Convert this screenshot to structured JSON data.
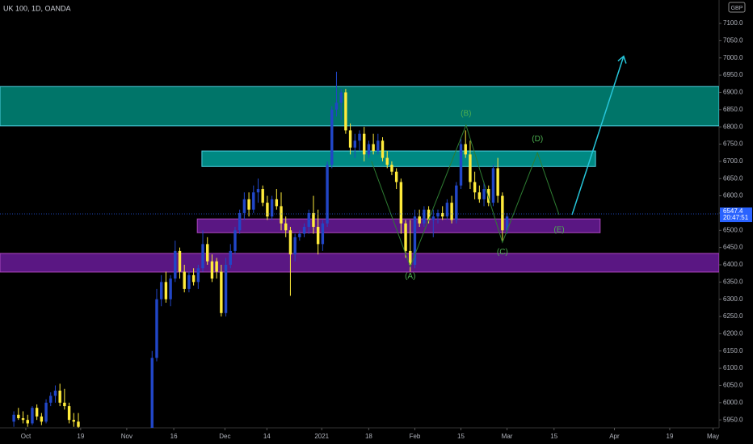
{
  "chart_data": {
    "type": "candlestick",
    "title": "UK 100, 1D, OANDA",
    "currency": "GBP",
    "up_color": "#2146c7",
    "down_color": "#ffeb3b",
    "xlim": [
      0,
      156
    ],
    "ylim": [
      5927,
      7168
    ],
    "xticks": [
      {
        "value": 5.6,
        "label": "Oct"
      },
      {
        "value": 17.5,
        "label": "19"
      },
      {
        "value": 27.5,
        "label": "Nov"
      },
      {
        "value": 37.7,
        "label": "16"
      },
      {
        "value": 48.8,
        "label": "Dec"
      },
      {
        "value": 57.9,
        "label": "14"
      },
      {
        "value": 69.8,
        "label": "2021"
      },
      {
        "value": 80,
        "label": "18"
      },
      {
        "value": 90,
        "label": "Feb"
      },
      {
        "value": 100,
        "label": "15"
      },
      {
        "value": 110,
        "label": "Mar"
      },
      {
        "value": 120.2,
        "label": "15"
      },
      {
        "value": 133.3,
        "label": "Apr"
      },
      {
        "value": 145.3,
        "label": "19"
      },
      {
        "value": 154.7,
        "label": "May"
      }
    ],
    "yticks": [
      {
        "value": 5950,
        "label": "5950.0"
      },
      {
        "value": 6000,
        "label": "6000.0"
      },
      {
        "value": 6050,
        "label": "6050.0"
      },
      {
        "value": 6100,
        "label": "6100.0"
      },
      {
        "value": 6150,
        "label": "6150.0"
      },
      {
        "value": 6200,
        "label": "6200.0"
      },
      {
        "value": 6250,
        "label": "6250.0"
      },
      {
        "value": 6300,
        "label": "6300.0"
      },
      {
        "value": 6350,
        "label": "6350.0"
      },
      {
        "value": 6400,
        "label": "6400.0"
      },
      {
        "value": 6450,
        "label": "6450.0"
      },
      {
        "value": 6500,
        "label": "6500.0"
      },
      {
        "value": 6550,
        "label": "6550.0"
      },
      {
        "value": 6600,
        "label": "6600.0"
      },
      {
        "value": 6650,
        "label": "6650.0"
      },
      {
        "value": 6700,
        "label": "6700.0"
      },
      {
        "value": 6750,
        "label": "6750.0"
      },
      {
        "value": 6800,
        "label": "6800.0"
      },
      {
        "value": 6850,
        "label": "6850.0"
      },
      {
        "value": 6900,
        "label": "6900.0"
      },
      {
        "value": 6950,
        "label": "6950.0"
      },
      {
        "value": 7000,
        "label": "7000.0"
      },
      {
        "value": 7050,
        "label": "7050.0"
      },
      {
        "value": 7100,
        "label": "7100.0"
      }
    ],
    "x": [
      3,
      4,
      5,
      6,
      7,
      8,
      9,
      10,
      11,
      12,
      13,
      14,
      15,
      16,
      17,
      33,
      34,
      35,
      36,
      37,
      38,
      39,
      40,
      41,
      42,
      43,
      44,
      45,
      46,
      47,
      48,
      49,
      50,
      51,
      52,
      53,
      54,
      55,
      56,
      57,
      58,
      59,
      60,
      61,
      62,
      63,
      64,
      65,
      66,
      67,
      68,
      69,
      70,
      71,
      72,
      73,
      74,
      75,
      76,
      77,
      78,
      79,
      80,
      81,
      82,
      83,
      84,
      85,
      86,
      87,
      88,
      89,
      90,
      91,
      92,
      93,
      94,
      95,
      96,
      97,
      98,
      99,
      100,
      101,
      102,
      103,
      104,
      105,
      106,
      107,
      108,
      109,
      110
    ],
    "open": [
      5945,
      5965,
      5955,
      5950,
      5940,
      5985,
      5960,
      5945,
      6000,
      6020,
      6035,
      6000,
      5990,
      5950,
      5945,
      5880,
      6130,
      6300,
      6350,
      6300,
      6360,
      6440,
      6380,
      6330,
      6370,
      6350,
      6390,
      6460,
      6410,
      6410,
      6380,
      6260,
      6400,
      6440,
      6500,
      6550,
      6590,
      6560,
      6610,
      6620,
      6580,
      6540,
      6590,
      6570,
      6520,
      6500,
      6430,
      6480,
      6490,
      6510,
      6550,
      6510,
      6460,
      6520,
      6690,
      6850,
      6870,
      6900,
      6790,
      6740,
      6760,
      6780,
      6720,
      6750,
      6730,
      6760,
      6710,
      6690,
      6670,
      6640,
      6520,
      6440,
      6400,
      6540,
      6520,
      6560,
      6530,
      6540,
      6550,
      6540,
      6580,
      6530,
      6630,
      6750,
      6720,
      6640,
      6610,
      6590,
      6620,
      6580,
      6680,
      6600,
      6500
    ],
    "high": [
      5975,
      5985,
      5975,
      5965,
      5990,
      5995,
      5970,
      6010,
      6030,
      6050,
      6055,
      6040,
      6000,
      5970,
      5970,
      6150,
      6330,
      6370,
      6380,
      6370,
      6470,
      6450,
      6400,
      6380,
      6390,
      6400,
      6500,
      6480,
      6430,
      6420,
      6400,
      6420,
      6460,
      6510,
      6560,
      6610,
      6610,
      6630,
      6650,
      6630,
      6600,
      6600,
      6620,
      6610,
      6540,
      6510,
      6490,
      6500,
      6520,
      6560,
      6600,
      6560,
      6530,
      6700,
      6860,
      6960,
      6910,
      6910,
      6810,
      6780,
      6790,
      6800,
      6760,
      6780,
      6780,
      6770,
      6730,
      6700,
      6680,
      6650,
      6530,
      6530,
      6560,
      6560,
      6570,
      6570,
      6560,
      6560,
      6570,
      6590,
      6600,
      6640,
      6770,
      6790,
      6760,
      6670,
      6630,
      6640,
      6630,
      6690,
      6710,
      6610,
      6550
    ],
    "low": [
      5930,
      5950,
      5940,
      5930,
      5935,
      5950,
      5935,
      5940,
      5990,
      6000,
      5990,
      5980,
      5940,
      5930,
      5920,
      5870,
      6120,
      6280,
      6290,
      6280,
      6350,
      6360,
      6320,
      6320,
      6340,
      6330,
      6380,
      6400,
      6350,
      6360,
      6250,
      6250,
      6390,
      6430,
      6490,
      6530,
      6540,
      6550,
      6580,
      6570,
      6530,
      6530,
      6560,
      6500,
      6480,
      6310,
      6410,
      6470,
      6480,
      6490,
      6490,
      6430,
      6440,
      6510,
      6680,
      6830,
      6820,
      6780,
      6720,
      6710,
      6730,
      6700,
      6710,
      6720,
      6720,
      6700,
      6680,
      6660,
      6620,
      6490,
      6420,
      6380,
      6390,
      6510,
      6510,
      6520,
      6480,
      6520,
      6530,
      6530,
      6520,
      6520,
      6620,
      6710,
      6620,
      6590,
      6580,
      6570,
      6570,
      6570,
      6580,
      6470,
      6490
    ],
    "close": [
      5965,
      5955,
      5950,
      5940,
      5985,
      5960,
      5945,
      6000,
      6020,
      6035,
      6000,
      5990,
      5950,
      5945,
      5930,
      6130,
      6300,
      6350,
      6300,
      6360,
      6440,
      6380,
      6330,
      6370,
      6350,
      6390,
      6460,
      6410,
      6360,
      6380,
      6260,
      6400,
      6440,
      6500,
      6550,
      6590,
      6560,
      6610,
      6620,
      6580,
      6540,
      6590,
      6570,
      6520,
      6500,
      6430,
      6480,
      6490,
      6510,
      6550,
      6510,
      6460,
      6520,
      6690,
      6850,
      6870,
      6900,
      6790,
      6740,
      6760,
      6780,
      6720,
      6750,
      6730,
      6760,
      6710,
      6690,
      6670,
      6640,
      6520,
      6440,
      6400,
      6540,
      6520,
      6560,
      6530,
      6540,
      6550,
      6540,
      6580,
      6530,
      6630,
      6750,
      6720,
      6640,
      6610,
      6590,
      6620,
      6580,
      6680,
      6600,
      6500,
      6540
    ],
    "zones": [
      {
        "x": [
          0,
          156
        ],
        "y": [
          6803,
          6917
        ],
        "color": "#00897b"
      },
      {
        "x": [
          43.8,
          129.2
        ],
        "y": [
          6685,
          6730
        ],
        "color": "#00a19a"
      },
      {
        "x": [
          42.8,
          130.2
        ],
        "y": [
          6493,
          6533
        ],
        "color": "#6a1b9a"
      },
      {
        "x": [
          0,
          156
        ],
        "y": [
          6379,
          6433
        ],
        "color": "#6a1b9a"
      }
    ],
    "wave": {
      "x": [
        80.6,
        89,
        101.1,
        109,
        116.6,
        121.3
      ],
      "y": [
        6700,
        6395,
        6805,
        6465,
        6725,
        6545
      ],
      "color": "#2e7d32"
    },
    "wave_labels": [
      "(A)",
      "(B)",
      "(C)",
      "(D)",
      "(E)"
    ],
    "arrow": {
      "x": [
        124.1,
        135.3
      ],
      "y": [
        6545,
        7005
      ],
      "color": "#26c6da"
    },
    "last_price": 6547.4,
    "countdown": "20:47:51"
  }
}
